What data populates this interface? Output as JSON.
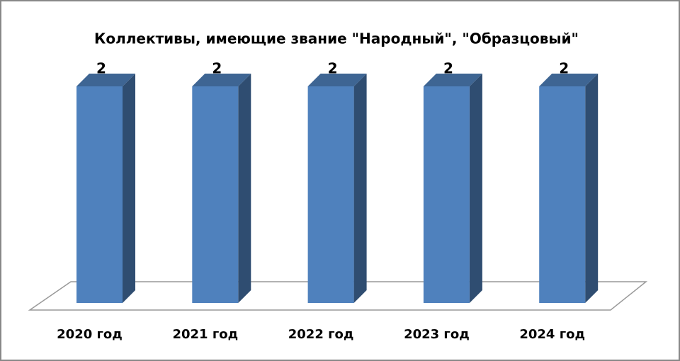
{
  "chart_data": {
    "type": "bar3d",
    "title": "Коллективы, имеющие звание \"Народный\", \"Образцовый\"",
    "categories": [
      "2020 год",
      "2021 год",
      "2022 год",
      "2023 год",
      "2024 год"
    ],
    "values": [
      2,
      2,
      2,
      2,
      2
    ],
    "color": "#4f81bd"
  }
}
